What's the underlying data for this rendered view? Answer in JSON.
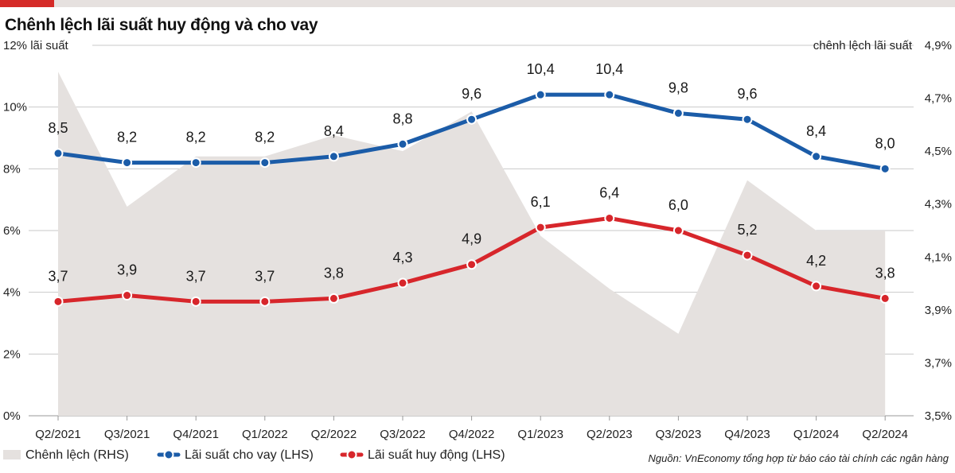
{
  "header": {
    "title": "Chênh lệch lãi suất huy động và cho vay",
    "accent_color": "#d52b28"
  },
  "source": "Nguồn: VnEconomy tổng hợp từ báo cáo tài chính các ngân hàng",
  "chart_data": {
    "type": "line",
    "title": "Chênh lệch lãi suất huy động và cho vay",
    "categories": [
      "Q2/2021",
      "Q3/2021",
      "Q4/2021",
      "Q1/2022",
      "Q2/2022",
      "Q3/2022",
      "Q4/2022",
      "Q1/2023",
      "Q2/2023",
      "Q3/2023",
      "Q4/2023",
      "Q1/2024",
      "Q2/2024"
    ],
    "left_axis": {
      "label": "lãi suất",
      "ylim": [
        0,
        12
      ],
      "ticks": [
        0,
        2,
        4,
        6,
        8,
        10,
        12
      ],
      "tick_labels": [
        "0%",
        "2%",
        "4%",
        "6%",
        "8%",
        "10%",
        "12%"
      ]
    },
    "right_axis": {
      "label_spread": "chênh lệch",
      "label_rate": "lãi suất",
      "ylim": [
        3.5,
        4.9
      ],
      "ticks": [
        3.5,
        3.7,
        3.9,
        4.1,
        4.3,
        4.5,
        4.7,
        4.9
      ],
      "tick_labels": [
        "3,5%",
        "3,7%",
        "3,9%",
        "4,1%",
        "4,3%",
        "4,5%",
        "4,7%",
        "4,9%"
      ]
    },
    "series": [
      {
        "name": "Chênh lệch (RHS)",
        "type": "area",
        "axis": "right",
        "color": "#e5e1df",
        "values": [
          4.8,
          4.29,
          4.48,
          4.48,
          4.56,
          4.5,
          4.65,
          4.18,
          3.98,
          3.81,
          4.39,
          4.2,
          4.2
        ]
      },
      {
        "name": "Lãi suất cho vay (LHS)",
        "type": "line",
        "axis": "left",
        "color": "#1b5ca8",
        "values": [
          8.5,
          8.2,
          8.2,
          8.2,
          8.4,
          8.8,
          9.6,
          10.4,
          10.4,
          9.8,
          9.6,
          8.4,
          8.0
        ],
        "labels": [
          "8,5",
          "8,2",
          "8,2",
          "8,2",
          "8,4",
          "8,8",
          "9,6",
          "10,4",
          "10,4",
          "9,8",
          "9,6",
          "8,4",
          "8,0"
        ]
      },
      {
        "name": "Lãi suất huy động (LHS)",
        "type": "line",
        "axis": "left",
        "color": "#d7262b",
        "values": [
          3.7,
          3.9,
          3.7,
          3.7,
          3.8,
          4.3,
          4.9,
          6.1,
          6.4,
          6.0,
          5.2,
          4.2,
          3.8
        ],
        "labels": [
          "3,7",
          "3,9",
          "3,7",
          "3,7",
          "3,8",
          "4,3",
          "4,9",
          "6,1",
          "6,4",
          "6,0",
          "5,2",
          "4,2",
          "3,8"
        ]
      }
    ],
    "legend": {
      "placement": "bottom-left",
      "entries": [
        "Chênh lệch (RHS)",
        "Lãi suất cho vay (LHS)",
        "Lãi suất huy động (LHS)"
      ]
    },
    "grid": true
  }
}
